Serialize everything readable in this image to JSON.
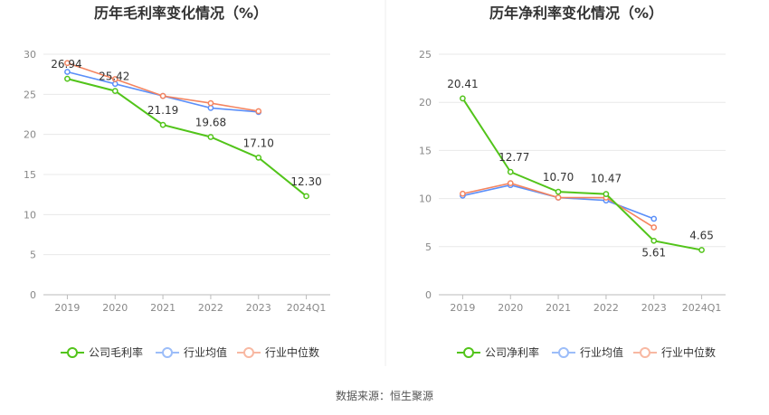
{
  "source": "数据来源：恒生聚源",
  "chart_data": [
    {
      "type": "line",
      "title": "历年毛利率变化情况（%）",
      "categories": [
        "2019",
        "2020",
        "2021",
        "2022",
        "2023",
        "2024Q1"
      ],
      "ylim": [
        0,
        30
      ],
      "yticks": [
        0,
        5,
        10,
        15,
        20,
        25,
        30
      ],
      "grid": true,
      "legend_position": "bottom",
      "series": [
        {
          "name": "公司毛利率",
          "color": "#52c41a",
          "values": [
            26.94,
            25.42,
            21.19,
            19.68,
            17.1,
            12.3
          ],
          "labels": [
            "26.94",
            "25.42",
            "21.19",
            "19.68",
            "17.10",
            "12.30"
          ]
        },
        {
          "name": "行业均值",
          "color": "#5b8ff9",
          "values": [
            27.8,
            26.3,
            24.8,
            23.3,
            22.8,
            null
          ]
        },
        {
          "name": "行业中位数",
          "color": "#f4845f",
          "values": [
            28.9,
            26.9,
            24.8,
            23.9,
            22.9,
            null
          ]
        }
      ]
    },
    {
      "type": "line",
      "title": "历年净利率变化情况（%）",
      "categories": [
        "2019",
        "2020",
        "2021",
        "2022",
        "2023",
        "2024Q1"
      ],
      "ylim": [
        0,
        25
      ],
      "yticks": [
        0,
        5,
        10,
        15,
        20,
        25
      ],
      "grid": true,
      "legend_position": "bottom",
      "series": [
        {
          "name": "公司净利率",
          "color": "#52c41a",
          "values": [
            20.41,
            12.77,
            10.7,
            10.47,
            5.61,
            4.65
          ],
          "labels": [
            "20.41",
            "12.77",
            "10.70",
            "10.47",
            "5.61",
            "4.65"
          ]
        },
        {
          "name": "行业均值",
          "color": "#5b8ff9",
          "values": [
            10.3,
            11.4,
            10.1,
            9.8,
            7.9,
            null
          ]
        },
        {
          "name": "行业中位数",
          "color": "#f4845f",
          "values": [
            10.5,
            11.6,
            10.1,
            10.1,
            7.0,
            null
          ]
        }
      ]
    }
  ]
}
